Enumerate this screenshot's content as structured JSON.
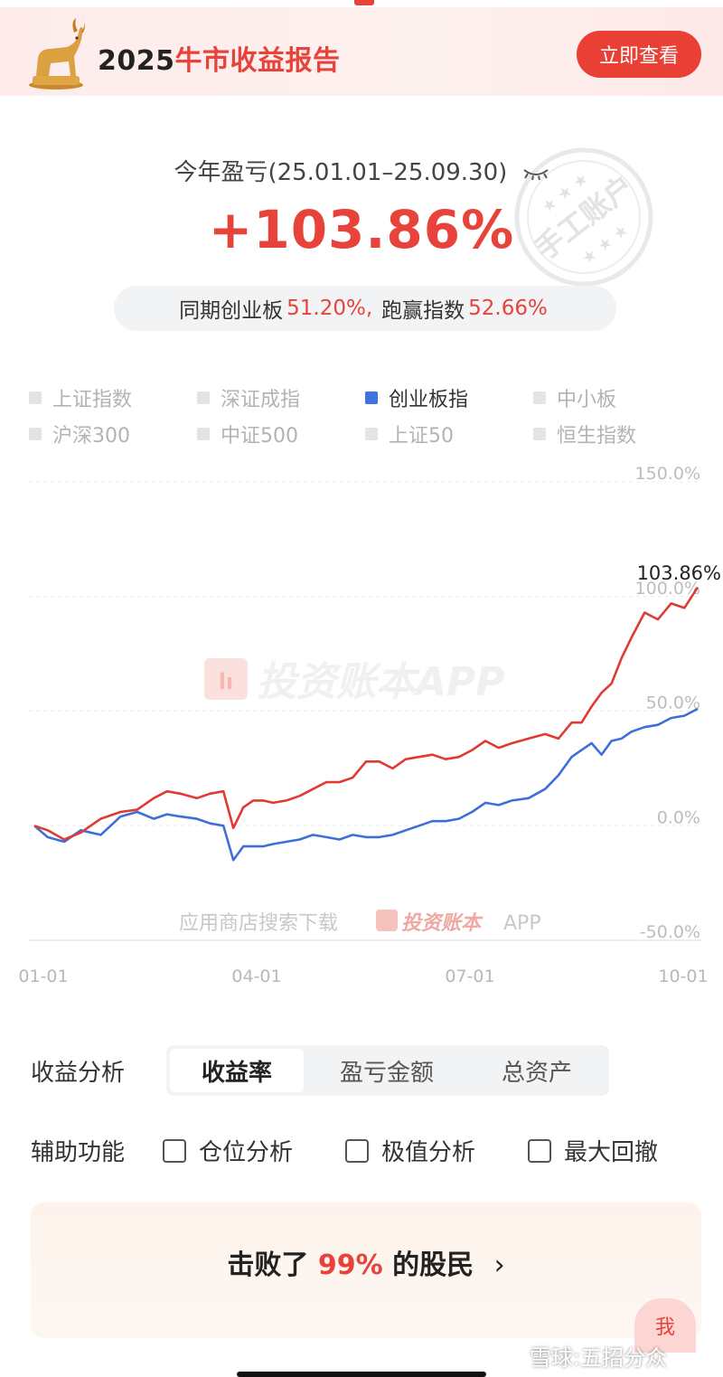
{
  "banner": {
    "year": "2025",
    "title_highlight": "牛市收益报告",
    "button_label": "立即查看"
  },
  "stamp_text": "手工账户",
  "summary": {
    "label": "今年盈亏(25.01.01–25.09.30)",
    "value": "+103.86%",
    "compare_prefix": "同期创业板",
    "compare_index_value": "51.20%,",
    "compare_mid": "跑赢指数",
    "compare_excess_value": "52.66%"
  },
  "legend": [
    {
      "label": "上证指数",
      "active": false
    },
    {
      "label": "深证成指",
      "active": false
    },
    {
      "label": "创业板指",
      "active": true
    },
    {
      "label": "中小板",
      "active": false
    },
    {
      "label": "沪深300",
      "active": false
    },
    {
      "label": "中证500",
      "active": false
    },
    {
      "label": "上证50",
      "active": false
    },
    {
      "label": "恒生指数",
      "active": false
    }
  ],
  "chart_data": {
    "type": "line",
    "x_ticks": [
      "01-01",
      "04-01",
      "07-01",
      "10-01"
    ],
    "y_ticks": [
      "150.0%",
      "100.0%",
      "50.0%",
      "0.0%",
      "-50.0%"
    ],
    "ylim": [
      -50,
      150
    ],
    "end_label": "103.86%",
    "watermark_main": "投资账本APP",
    "watermark_sub_prefix": "应用商店搜索下载",
    "watermark_sub_brand": "投资账本",
    "watermark_sub_suffix": "APP",
    "series": [
      {
        "color": "#e03a32",
        "x": [
          0,
          0.02,
          0.045,
          0.07,
          0.1,
          0.13,
          0.155,
          0.18,
          0.2,
          0.22,
          0.245,
          0.265,
          0.285,
          0.3,
          0.315,
          0.33,
          0.345,
          0.36,
          0.38,
          0.4,
          0.42,
          0.44,
          0.46,
          0.48,
          0.5,
          0.52,
          0.54,
          0.56,
          0.58,
          0.6,
          0.62,
          0.64,
          0.66,
          0.68,
          0.7,
          0.72,
          0.745,
          0.77,
          0.79,
          0.81,
          0.825,
          0.84,
          0.855,
          0.87,
          0.885,
          0.9,
          0.92,
          0.94,
          0.96,
          0.98,
          1.0
        ],
        "y": [
          0,
          -2,
          -6,
          -3,
          3,
          6,
          7,
          12,
          15,
          14,
          12,
          14,
          15,
          -1,
          8,
          11,
          11,
          10,
          11,
          13,
          16,
          19,
          19,
          21,
          28,
          28,
          25,
          29,
          30,
          31,
          29,
          30,
          33,
          37,
          34,
          36,
          38,
          40,
          38,
          45,
          45,
          52,
          58,
          62,
          73,
          82,
          93,
          90,
          97,
          95,
          104
        ]
      },
      {
        "color": "#3e6fd8",
        "x": [
          0,
          0.02,
          0.045,
          0.07,
          0.1,
          0.13,
          0.155,
          0.18,
          0.2,
          0.22,
          0.245,
          0.265,
          0.285,
          0.3,
          0.315,
          0.33,
          0.345,
          0.36,
          0.38,
          0.4,
          0.42,
          0.44,
          0.46,
          0.48,
          0.5,
          0.52,
          0.54,
          0.56,
          0.58,
          0.6,
          0.62,
          0.64,
          0.66,
          0.68,
          0.7,
          0.72,
          0.745,
          0.77,
          0.79,
          0.81,
          0.825,
          0.84,
          0.855,
          0.87,
          0.885,
          0.9,
          0.92,
          0.94,
          0.96,
          0.98,
          1.0
        ],
        "y": [
          0,
          -5,
          -7,
          -2,
          -4,
          4,
          6,
          3,
          5,
          4,
          3,
          1,
          0,
          -15,
          -9,
          -9,
          -9,
          -8,
          -7,
          -6,
          -4,
          -5,
          -6,
          -4,
          -5,
          -5,
          -4,
          -2,
          0,
          2,
          2,
          3,
          6,
          10,
          9,
          11,
          12,
          16,
          22,
          30,
          33,
          36,
          31,
          37,
          38,
          41,
          43,
          44,
          47,
          48,
          51
        ]
      }
    ]
  },
  "analysis": {
    "label": "收益分析",
    "tabs": [
      {
        "label": "收益率",
        "active": true
      },
      {
        "label": "盈亏金额",
        "active": false
      },
      {
        "label": "总资产",
        "active": false
      }
    ]
  },
  "aux": {
    "label": "辅助功能",
    "options": [
      "仓位分析",
      "极值分析",
      "最大回撤"
    ]
  },
  "beat": {
    "prefix": "击败了",
    "value": "99%",
    "suffix": "的股民",
    "chevron": "›"
  },
  "me_label": "我",
  "footer_watermark": "雪球:五招分众",
  "colors": {
    "accent_red": "#e8433a",
    "accent_blue": "#3e73e0"
  }
}
